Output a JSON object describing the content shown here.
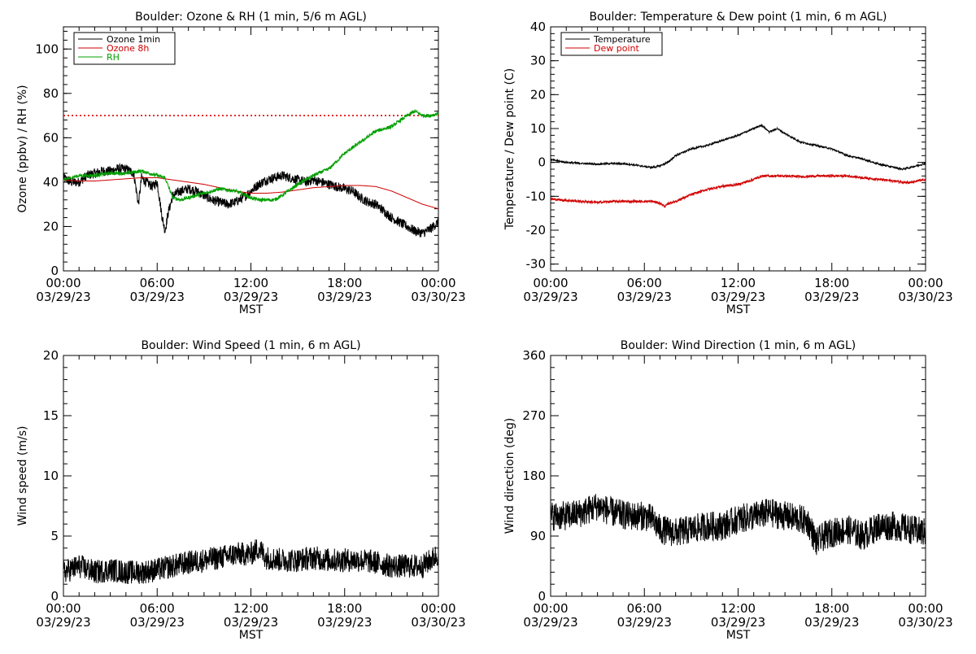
{
  "chart_data": [
    {
      "id": "p1",
      "type": "line",
      "title": "Boulder: Ozone & RH (1 min, 5/6 m AGL)",
      "xlabel": "MST",
      "ylabel": "Ozone (ppbv) / RH (%)",
      "xlim": [
        0,
        24
      ],
      "ylim": [
        0,
        110
      ],
      "yticks": [
        0,
        20,
        40,
        60,
        80,
        100
      ],
      "x_ticks": [
        {
          "x": 0,
          "line1": "00:00",
          "line2": "03/29/23"
        },
        {
          "x": 6,
          "line1": "06:00",
          "line2": "03/29/23"
        },
        {
          "x": 12,
          "line1": "12:00",
          "line2": "03/29/23"
        },
        {
          "x": 18,
          "line1": "18:00",
          "line2": "03/29/23"
        },
        {
          "x": 24,
          "line1": "00:00",
          "line2": "03/30/23"
        }
      ],
      "reference_line": {
        "y": 70,
        "color": "#e00000",
        "style": "dotted"
      },
      "legend_position": "top-left",
      "series": [
        {
          "name": "Ozone 1min",
          "color": "#000000",
          "noise": 2.2,
          "x": [
            0,
            0.5,
            1,
            1.5,
            2,
            2.5,
            3,
            3.5,
            4,
            4.5,
            4.8,
            5,
            5.3,
            5.7,
            6,
            6.3,
            6.5,
            6.7,
            7,
            7.5,
            8,
            8.5,
            9,
            9.5,
            10,
            10.5,
            11,
            11.5,
            12,
            12.5,
            13,
            13.5,
            14,
            14.5,
            15,
            15.5,
            16,
            16.5,
            17,
            17.5,
            18,
            18.5,
            19,
            19.5,
            20,
            20.5,
            21,
            21.5,
            22,
            22.5,
            23,
            23.5,
            24
          ],
          "y": [
            42,
            40,
            40,
            43,
            44,
            45,
            45,
            46,
            46,
            44,
            30,
            42,
            40,
            38,
            40,
            25,
            18,
            26,
            34,
            36,
            37,
            36,
            34,
            32,
            31,
            30,
            31,
            33,
            36,
            39,
            41,
            42,
            43,
            42,
            41,
            40,
            41,
            40,
            39,
            38,
            37,
            36,
            33,
            31,
            30,
            27,
            24,
            22,
            20,
            18,
            17,
            19,
            22
          ]
        },
        {
          "name": "Ozone 8h",
          "color": "#d00000",
          "noise": 0,
          "x": [
            0,
            1,
            2,
            3,
            4,
            5,
            6,
            7,
            8,
            9,
            10,
            11,
            12,
            13,
            14,
            15,
            16,
            17,
            18,
            19,
            20,
            21,
            22,
            23,
            24
          ],
          "y": [
            41,
            40.5,
            40.5,
            41,
            41.5,
            42,
            42,
            41,
            40,
            39,
            37.5,
            36,
            35,
            35,
            35.5,
            36.5,
            37.5,
            38,
            38.5,
            38.5,
            38,
            36,
            33,
            30,
            28
          ]
        },
        {
          "name": "RH",
          "color": "#00a000",
          "noise": 0.8,
          "x": [
            0,
            0.5,
            1,
            2,
            3,
            4,
            5,
            5.5,
            6,
            6.5,
            7,
            7.5,
            8,
            9,
            10,
            11,
            12,
            12.5,
            13,
            13.5,
            14,
            15,
            16,
            17,
            18,
            19,
            20,
            21,
            22,
            22.5,
            23,
            23.5,
            24
          ],
          "y": [
            41,
            42,
            43,
            43,
            44,
            44,
            45,
            44,
            43,
            42,
            33,
            32,
            33,
            35,
            37,
            36,
            33,
            32,
            32,
            32,
            34,
            39,
            43,
            46,
            53,
            58,
            63,
            65,
            70,
            72,
            70,
            70,
            71
          ]
        }
      ]
    },
    {
      "id": "p2",
      "type": "line",
      "title": "Boulder: Temperature & Dew point (1 min, 6 m AGL)",
      "xlabel": "MST",
      "ylabel": "Temperature / Dew point (C)",
      "xlim": [
        0,
        24
      ],
      "ylim": [
        -32,
        40
      ],
      "yticks": [
        -30,
        -20,
        -10,
        0,
        10,
        20,
        30,
        40
      ],
      "x_ticks": [
        {
          "x": 0,
          "line1": "00:00",
          "line2": "03/29/23"
        },
        {
          "x": 6,
          "line1": "06:00",
          "line2": "03/29/23"
        },
        {
          "x": 12,
          "line1": "12:00",
          "line2": "03/29/23"
        },
        {
          "x": 18,
          "line1": "18:00",
          "line2": "03/29/23"
        },
        {
          "x": 24,
          "line1": "00:00",
          "line2": "03/30/23"
        }
      ],
      "legend_position": "top-left",
      "series": [
        {
          "name": "Temperature",
          "color": "#000000",
          "noise": 0.25,
          "x": [
            0,
            1,
            2,
            3,
            4,
            5,
            6,
            6.5,
            7,
            7.5,
            8,
            9,
            10,
            11,
            12,
            13,
            13.5,
            14,
            14.5,
            15,
            16,
            17,
            18,
            19,
            20,
            21,
            22,
            22.5,
            23,
            24
          ],
          "y": [
            0.8,
            0,
            -0.3,
            -0.5,
            -0.3,
            -0.5,
            -1.2,
            -1.5,
            -1.0,
            0,
            2.0,
            4.0,
            5.0,
            6.5,
            8.0,
            10.0,
            11.0,
            9.0,
            10.0,
            8.5,
            6.0,
            5.0,
            4.0,
            2.0,
            1.0,
            -0.5,
            -1.5,
            -2.0,
            -1.5,
            -0.3
          ]
        },
        {
          "name": "Dew point",
          "color": "#d00000",
          "noise": 0.35,
          "x": [
            0,
            1,
            2,
            3,
            4,
            5,
            6,
            6.5,
            7,
            7.3,
            7.6,
            8,
            9,
            10,
            11,
            12,
            13,
            13.5,
            14,
            15,
            16,
            17,
            18,
            19,
            20,
            21,
            22,
            23,
            24
          ],
          "y": [
            -10.8,
            -11.2,
            -11.5,
            -11.8,
            -11.5,
            -11.5,
            -11.5,
            -11.5,
            -12.0,
            -13.0,
            -12.0,
            -11.5,
            -9.5,
            -8.0,
            -7.0,
            -6.5,
            -5.0,
            -4.0,
            -4.0,
            -4.0,
            -4.2,
            -4.0,
            -4.0,
            -4.0,
            -4.5,
            -5.0,
            -5.5,
            -6.0,
            -5.0
          ]
        }
      ]
    },
    {
      "id": "p3",
      "type": "line",
      "title": "Boulder: Wind Speed (1 min, 6 m AGL)",
      "xlabel": "MST",
      "ylabel": "Wind speed (m/s)",
      "xlim": [
        0,
        24
      ],
      "ylim": [
        0,
        20
      ],
      "yticks": [
        0,
        5,
        10,
        15,
        20
      ],
      "x_ticks": [
        {
          "x": 0,
          "line1": "00:00",
          "line2": "03/29/23"
        },
        {
          "x": 6,
          "line1": "06:00",
          "line2": "03/29/23"
        },
        {
          "x": 12,
          "line1": "12:00",
          "line2": "03/29/23"
        },
        {
          "x": 18,
          "line1": "18:00",
          "line2": "03/29/23"
        },
        {
          "x": 24,
          "line1": "00:00",
          "line2": "03/30/23"
        }
      ],
      "series": [
        {
          "name": "",
          "color": "#000000",
          "noise": 1.0,
          "x": [
            0,
            1,
            2,
            3,
            4,
            5,
            6,
            7,
            8,
            9,
            10,
            11,
            12,
            12.5,
            13,
            14,
            15,
            16,
            17,
            18,
            19,
            20,
            21,
            22,
            23,
            23.5,
            24
          ],
          "y": [
            2,
            2.5,
            2,
            2.2,
            2,
            2,
            2.2,
            2.5,
            2.8,
            3,
            3.2,
            3.5,
            3.5,
            4,
            3.2,
            3,
            3,
            3.2,
            3,
            3,
            3,
            2.8,
            2.5,
            2.5,
            2.5,
            3.0,
            3.5
          ]
        }
      ]
    },
    {
      "id": "p4",
      "type": "line",
      "title": "Boulder: Wind Direction (1 min, 6 m AGL)",
      "xlabel": "MST",
      "ylabel": "Wind direction (deg)",
      "xlim": [
        0,
        24
      ],
      "ylim": [
        0,
        360
      ],
      "yticks": [
        0,
        90,
        180,
        270,
        360
      ],
      "x_ticks": [
        {
          "x": 0,
          "line1": "00:00",
          "line2": "03/29/23"
        },
        {
          "x": 6,
          "line1": "06:00",
          "line2": "03/29/23"
        },
        {
          "x": 12,
          "line1": "12:00",
          "line2": "03/29/23"
        },
        {
          "x": 18,
          "line1": "18:00",
          "line2": "03/29/23"
        },
        {
          "x": 24,
          "line1": "00:00",
          "line2": "03/30/23"
        }
      ],
      "series": [
        {
          "name": "",
          "color": "#000000",
          "noise": 22,
          "x": [
            0,
            1,
            2,
            3,
            4,
            5,
            6,
            6.5,
            7,
            8,
            9,
            10,
            11,
            12,
            13,
            14,
            15,
            16,
            16.5,
            17,
            17.5,
            18,
            19,
            20,
            21,
            22,
            23,
            24
          ],
          "y": [
            120,
            120,
            125,
            135,
            125,
            120,
            120,
            115,
            100,
            95,
            100,
            105,
            105,
            115,
            120,
            125,
            120,
            115,
            110,
            80,
            90,
            95,
            100,
            90,
            105,
            105,
            100,
            95
          ]
        }
      ]
    }
  ]
}
